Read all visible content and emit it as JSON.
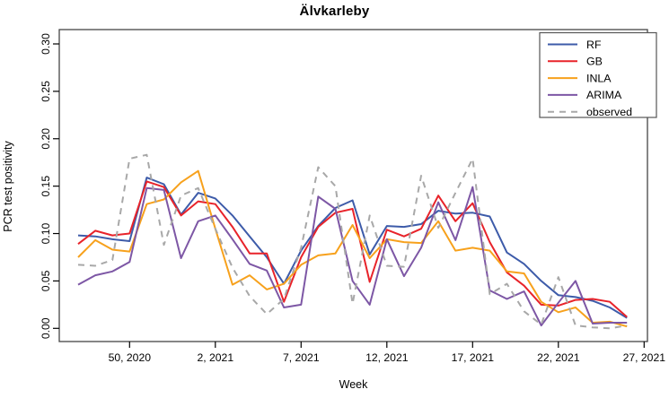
{
  "title": "Älvkarleby",
  "axes": {
    "x_label": "Week",
    "y_label": "PCR test positivity",
    "y_ticks": [
      "0.00",
      "0.05",
      "0.10",
      "0.15",
      "0.20",
      "0.25",
      "0.30"
    ],
    "x_ticks": [
      "50, 2020",
      "2, 2021",
      "7, 2021",
      "12, 2021",
      "17, 2021",
      "22, 2021",
      "27, 2021"
    ]
  },
  "legend": {
    "entries": [
      {
        "label": "RF",
        "color": "#3d5ba9",
        "dashed": false
      },
      {
        "label": "GB",
        "color": "#e8232a",
        "dashed": false
      },
      {
        "label": "INLA",
        "color": "#f7a11c",
        "dashed": false
      },
      {
        "label": "ARIMA",
        "color": "#7d57a5",
        "dashed": false
      },
      {
        "label": "observed",
        "color": "#a8a8a8",
        "dashed": true
      }
    ]
  },
  "chart_data": {
    "type": "line",
    "title": "Älvkarleby",
    "xlabel": "Week",
    "ylabel": "PCR test positivity",
    "ylim": [
      0.0,
      0.3
    ],
    "y_tick_step": 0.05,
    "grid": false,
    "legend_position": "top-right",
    "x_tick_labels": [
      "50, 2020",
      "2, 2021",
      "7, 2021",
      "12, 2021",
      "17, 2021",
      "22, 2021",
      "27, 2021"
    ],
    "x_tick_week_indices": [
      3,
      8,
      13,
      18,
      23,
      28,
      33
    ],
    "x": [
      "47, 2020",
      "48, 2020",
      "49, 2020",
      "50, 2020",
      "51, 2020",
      "52, 2020",
      "53, 2020",
      "1, 2021",
      "2, 2021",
      "3, 2021",
      "4, 2021",
      "5, 2021",
      "6, 2021",
      "7, 2021",
      "8, 2021",
      "9, 2021",
      "10, 2021",
      "11, 2021",
      "12, 2021",
      "13, 2021",
      "14, 2021",
      "15, 2021",
      "16, 2021",
      "17, 2021",
      "18, 2021",
      "19, 2021",
      "20, 2021",
      "21, 2021",
      "22, 2021",
      "23, 2021",
      "24, 2021",
      "25, 2021",
      "26, 2021"
    ],
    "series": [
      {
        "name": "RF",
        "color": "#3d5ba9",
        "dashed": false,
        "values": [
          0.098,
          0.097,
          0.094,
          0.092,
          0.159,
          0.152,
          0.12,
          0.143,
          0.137,
          0.119,
          0.097,
          0.075,
          0.047,
          0.082,
          0.108,
          0.127,
          0.135,
          0.078,
          0.108,
          0.107,
          0.11,
          0.124,
          0.121,
          0.122,
          0.118,
          0.08,
          0.068,
          0.05,
          0.035,
          0.033,
          0.029,
          0.022,
          0.011
        ]
      },
      {
        "name": "GB",
        "color": "#e8232a",
        "dashed": false,
        "values": [
          0.089,
          0.103,
          0.098,
          0.1,
          0.155,
          0.149,
          0.119,
          0.134,
          0.131,
          0.107,
          0.079,
          0.079,
          0.028,
          0.075,
          0.107,
          0.122,
          0.126,
          0.049,
          0.104,
          0.097,
          0.105,
          0.14,
          0.113,
          0.132,
          0.091,
          0.059,
          0.045,
          0.025,
          0.024,
          0.03,
          0.031,
          0.028,
          0.012
        ]
      },
      {
        "name": "INLA",
        "color": "#f7a11c",
        "dashed": false,
        "values": [
          0.075,
          0.093,
          0.083,
          0.081,
          0.131,
          0.136,
          0.154,
          0.166,
          0.105,
          0.046,
          0.056,
          0.041,
          0.047,
          0.067,
          0.077,
          0.079,
          0.109,
          0.074,
          0.094,
          0.091,
          0.09,
          0.113,
          0.082,
          0.085,
          0.082,
          0.06,
          0.058,
          0.028,
          0.017,
          0.022,
          0.006,
          0.007,
          0.002
        ]
      },
      {
        "name": "ARIMA",
        "color": "#7d57a5",
        "dashed": false,
        "values": [
          0.046,
          0.056,
          0.06,
          0.07,
          0.148,
          0.146,
          0.074,
          0.113,
          0.119,
          0.094,
          0.068,
          0.061,
          0.022,
          0.025,
          0.139,
          0.126,
          0.05,
          0.025,
          0.094,
          0.055,
          0.085,
          0.133,
          0.093,
          0.149,
          0.04,
          0.031,
          0.039,
          0.003,
          0.027,
          0.05,
          0.005,
          0.006,
          0.006
        ]
      },
      {
        "name": "observed",
        "color": "#a8a8a8",
        "dashed": true,
        "values": [
          0.067,
          0.066,
          0.072,
          0.179,
          0.183,
          0.088,
          0.14,
          0.148,
          0.105,
          0.064,
          0.034,
          0.015,
          0.031,
          0.085,
          0.17,
          0.15,
          0.026,
          0.119,
          0.066,
          0.065,
          0.161,
          0.106,
          0.143,
          0.179,
          0.036,
          0.047,
          0.018,
          0.004,
          0.054,
          0.003,
          0.001,
          0.0,
          0.003
        ]
      }
    ]
  }
}
